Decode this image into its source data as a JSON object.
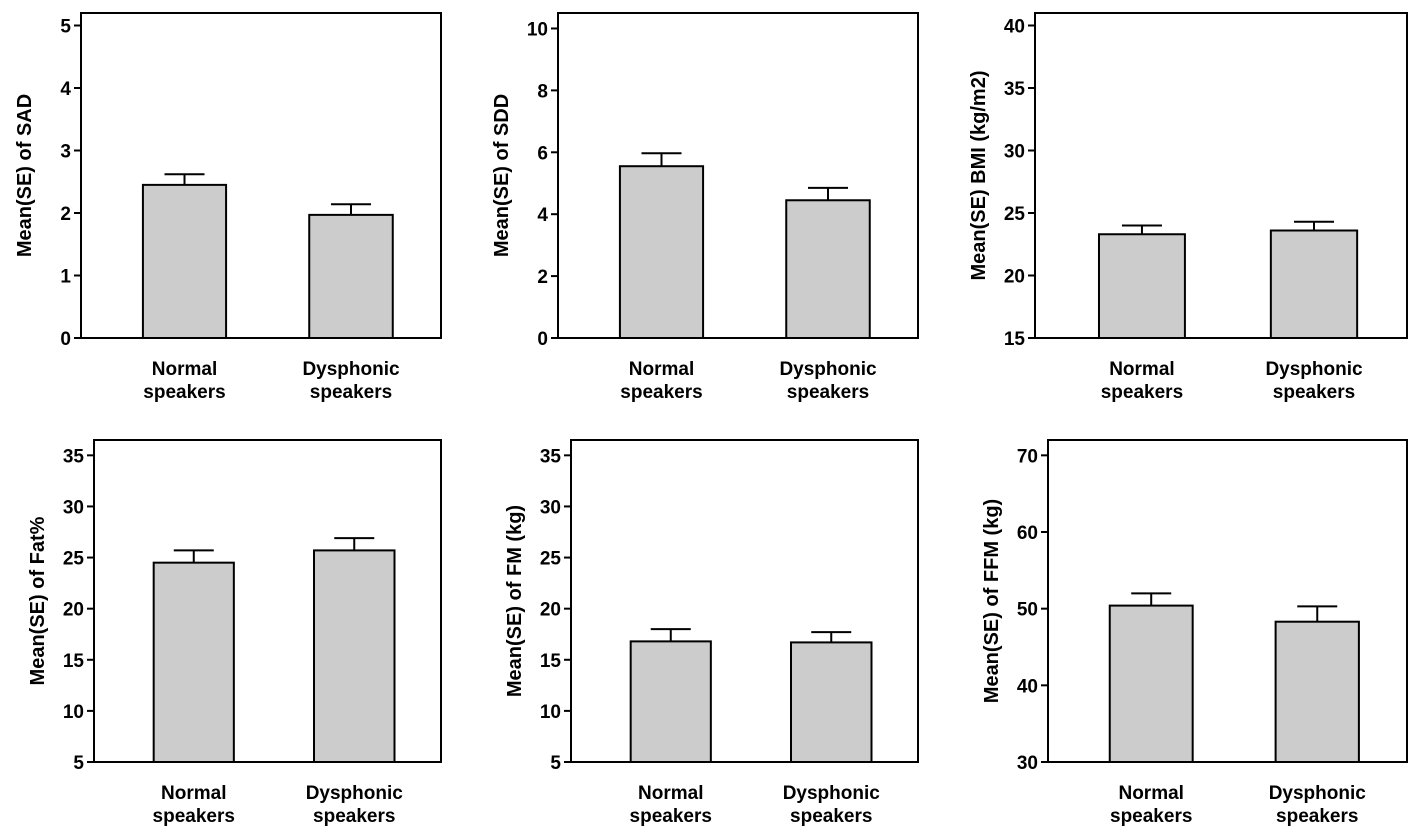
{
  "chart_data": [
    {
      "type": "bar",
      "categories": [
        [
          "Normal",
          "speakers"
        ],
        [
          "Dysphonic",
          "speakers"
        ]
      ],
      "values": [
        2.45,
        1.97
      ],
      "se": [
        0.17,
        0.17
      ],
      "ylabel": "Mean(SE) of SAD",
      "ylim": [
        0,
        5.2
      ],
      "yticks": [
        0,
        1,
        2,
        3,
        4,
        5
      ],
      "grid": false,
      "bar_color": "#cccccc"
    },
    {
      "type": "bar",
      "categories": [
        [
          "Normal",
          "speakers"
        ],
        [
          "Dysphonic",
          "speakers"
        ]
      ],
      "values": [
        5.55,
        4.45
      ],
      "se": [
        0.42,
        0.4
      ],
      "ylabel": "Mean(SE) of SDD",
      "ylim": [
        0,
        10.5
      ],
      "yticks": [
        0,
        2,
        4,
        6,
        8,
        10
      ],
      "grid": false,
      "bar_color": "#cccccc"
    },
    {
      "type": "bar",
      "categories": [
        [
          "Normal",
          "speakers"
        ],
        [
          "Dysphonic",
          "speakers"
        ]
      ],
      "values": [
        23.3,
        23.6
      ],
      "se": [
        0.7,
        0.7
      ],
      "ylabel": "Mean(SE) BMI (kg/m2)",
      "ylim": [
        15,
        41
      ],
      "yticks": [
        15,
        20,
        25,
        30,
        35,
        40
      ],
      "grid": false,
      "bar_color": "#cccccc"
    },
    {
      "type": "bar",
      "categories": [
        [
          "Normal",
          "speakers"
        ],
        [
          "Dysphonic",
          "speakers"
        ]
      ],
      "values": [
        24.5,
        25.7
      ],
      "se": [
        1.2,
        1.2
      ],
      "ylabel": "Mean(SE) of Fat%",
      "ylim": [
        5,
        36.5
      ],
      "yticks": [
        5,
        10,
        15,
        20,
        25,
        30,
        35
      ],
      "grid": false,
      "bar_color": "#cccccc"
    },
    {
      "type": "bar",
      "categories": [
        [
          "Normal",
          "speakers"
        ],
        [
          "Dysphonic",
          "speakers"
        ]
      ],
      "values": [
        16.8,
        16.7
      ],
      "se": [
        1.2,
        1.0
      ],
      "ylabel": "Mean(SE) of FM (kg)",
      "ylim": [
        5,
        36.5
      ],
      "yticks": [
        5,
        10,
        15,
        20,
        25,
        30,
        35
      ],
      "grid": false,
      "bar_color": "#cccccc"
    },
    {
      "type": "bar",
      "categories": [
        [
          "Normal",
          "speakers"
        ],
        [
          "Dysphonic",
          "speakers"
        ]
      ],
      "values": [
        50.4,
        48.3
      ],
      "se": [
        1.6,
        2.0
      ],
      "ylabel": "Mean(SE) of FFM (kg)",
      "ylim": [
        30,
        72
      ],
      "yticks": [
        30,
        40,
        50,
        60,
        70
      ],
      "grid": false,
      "bar_color": "#cccccc"
    }
  ]
}
